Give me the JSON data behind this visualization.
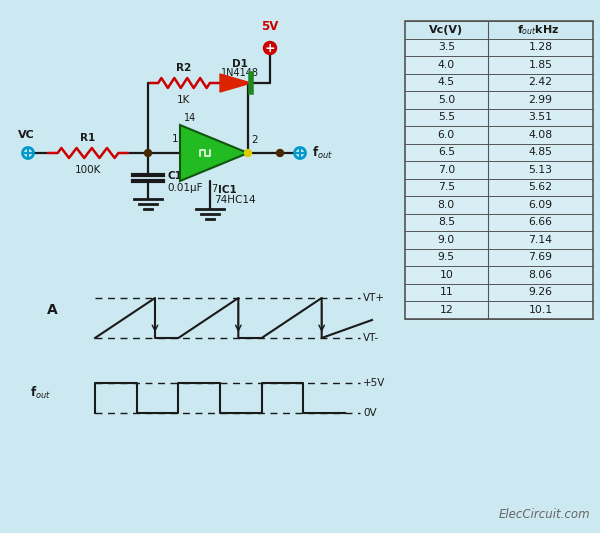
{
  "bg_color": "#cce8f0",
  "table_data": [
    [
      "3.5",
      "1.28"
    ],
    [
      "4.0",
      "1.85"
    ],
    [
      "4.5",
      "2.42"
    ],
    [
      "5.0",
      "2.99"
    ],
    [
      "5.5",
      "3.51"
    ],
    [
      "6.0",
      "4.08"
    ],
    [
      "6.5",
      "4.85"
    ],
    [
      "7.0",
      "5.13"
    ],
    [
      "7.5",
      "5.62"
    ],
    [
      "8.0",
      "6.09"
    ],
    [
      "8.5",
      "6.66"
    ],
    [
      "9.0",
      "7.14"
    ],
    [
      "9.5",
      "7.69"
    ],
    [
      "10",
      "8.06"
    ],
    [
      "11",
      "9.26"
    ],
    [
      "12",
      "10.1"
    ]
  ],
  "wire_color": "#1a1a1a",
  "resistor_color": "#cc0000",
  "ic_color": "#22bb22",
  "diode_red": "#dd2200",
  "diode_green": "#228822",
  "power_color": "#cc0000",
  "node_color": "#4a2800",
  "terminal_color": "#0099cc",
  "ground_color": "#1a1a1a",
  "label_color": "#1a1a1a",
  "signal_color": "#1a1a1a",
  "watermark": "ElecCircuit.com",
  "watermark_color": "#666666",
  "table_bg": "#cce8f0",
  "table_row_bg": "#d8eef5",
  "table_border": "#555555"
}
